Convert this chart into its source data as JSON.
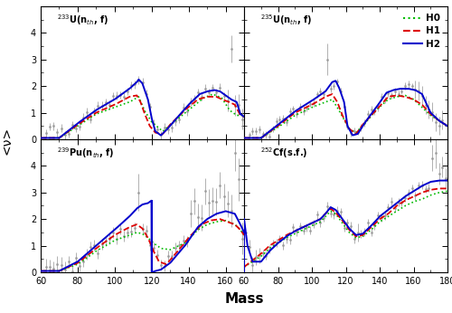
{
  "panels": [
    {
      "label": "$^{233}$U(n$_{\\mathregular{th}}$, f)",
      "xmin": 60,
      "xmax": 170
    },
    {
      "label": "$^{235}$U(n$_{\\mathregular{th}}$, f)",
      "xmin": 60,
      "xmax": 180
    },
    {
      "label": "$^{239}$Pu(n$_{\\mathregular{th}}$, f)",
      "xmin": 60,
      "xmax": 170
    },
    {
      "label": "$^{252}$Cf(s.f.)",
      "xmin": 60,
      "xmax": 180
    }
  ],
  "line_colors": [
    "#00bb00",
    "#dd0000",
    "#0000cc"
  ],
  "data_color": "#999999",
  "xlabel": "Mass",
  "ylabel": "<ν>",
  "yticks": [
    0,
    1,
    2,
    3,
    4
  ],
  "ymax": 5,
  "lw": 1.0
}
